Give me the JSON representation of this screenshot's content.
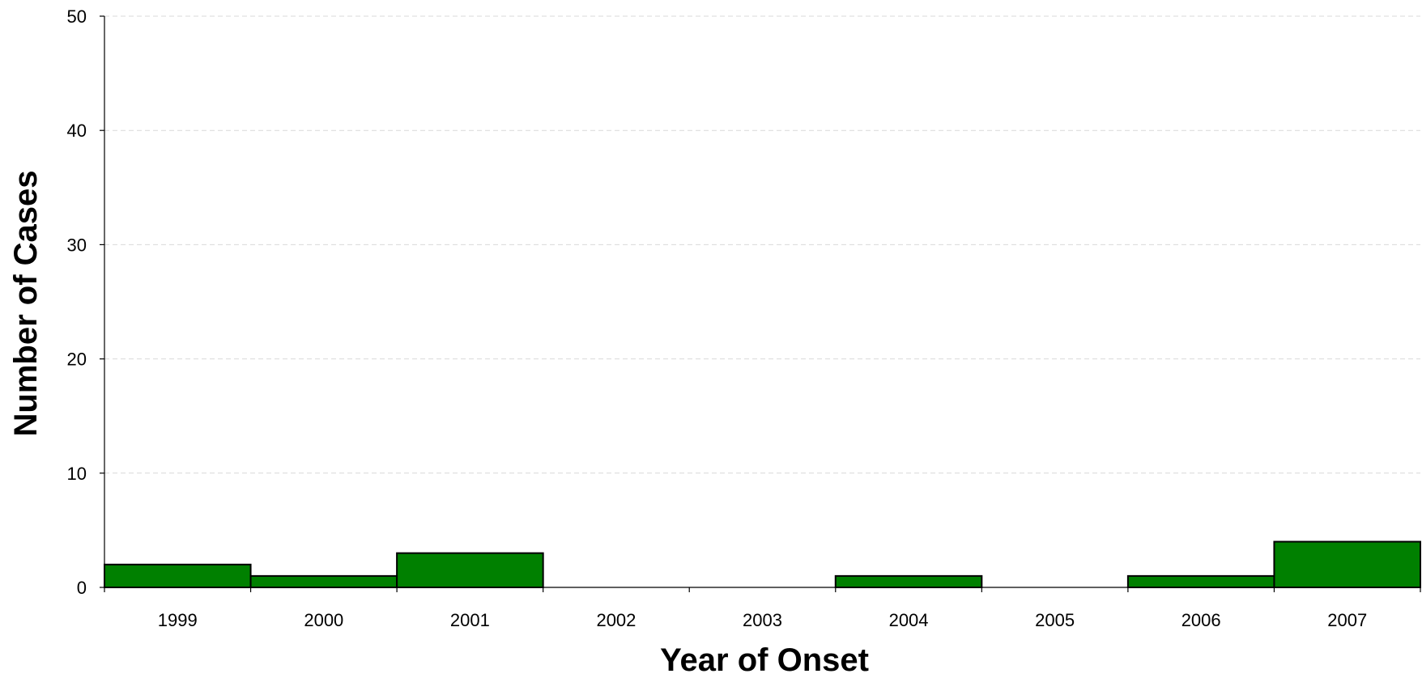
{
  "chart_data": {
    "type": "bar",
    "categories": [
      "1999",
      "2000",
      "2001",
      "2002",
      "2003",
      "2004",
      "2005",
      "2006",
      "2007"
    ],
    "values": [
      2,
      1,
      3,
      0,
      0,
      1,
      0,
      1,
      4
    ],
    "title": "",
    "xlabel": "Year of Onset",
    "ylabel": "Number of Cases",
    "ylim": [
      0,
      50
    ],
    "yticks": [
      0,
      10,
      20,
      30,
      40,
      50
    ],
    "grid": true,
    "bar_color": "#008000",
    "bar_edge_color": "#000000",
    "legend": "none"
  }
}
